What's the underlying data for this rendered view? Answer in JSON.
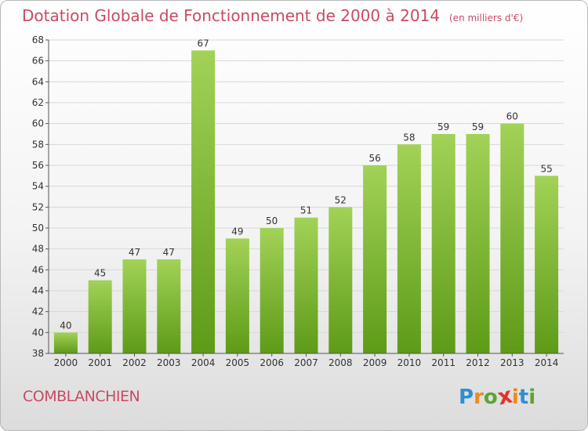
{
  "header": {
    "title": "Dotation Globale de Fonctionnement de 2000 à 2014",
    "unit": "(en milliers d'€)"
  },
  "footer": {
    "commune": "COMBLANCHIEN",
    "logo_letters": [
      "P",
      "r",
      "o",
      "x",
      "i",
      "t",
      "i"
    ],
    "logo_colors": [
      "#2f8fd0",
      "#f08a1c",
      "#5aa632",
      "#e2352a",
      "#f08a1c",
      "#2f8fd0",
      "#5aa632"
    ]
  },
  "colors": {
    "title": "#c84b62",
    "bar_top": "#a2d257",
    "bar_bottom": "#5d9b17",
    "grid": "#d8d8d8",
    "axis": "#555555",
    "text": "#333333"
  },
  "chart_data": {
    "type": "bar",
    "title": "Dotation Globale de Fonctionnement de 2000 à 2014",
    "subtitle": "(en milliers d'€)",
    "categories": [
      "2000",
      "2001",
      "2002",
      "2003",
      "2004",
      "2005",
      "2006",
      "2007",
      "2008",
      "2009",
      "2010",
      "2011",
      "2012",
      "2013",
      "2014"
    ],
    "values": [
      40,
      45,
      47,
      47,
      67,
      49,
      50,
      51,
      52,
      56,
      58,
      59,
      59,
      60,
      55
    ],
    "ylim": [
      38,
      68
    ],
    "ytick_step": 2,
    "grid": true,
    "legend": "none"
  }
}
